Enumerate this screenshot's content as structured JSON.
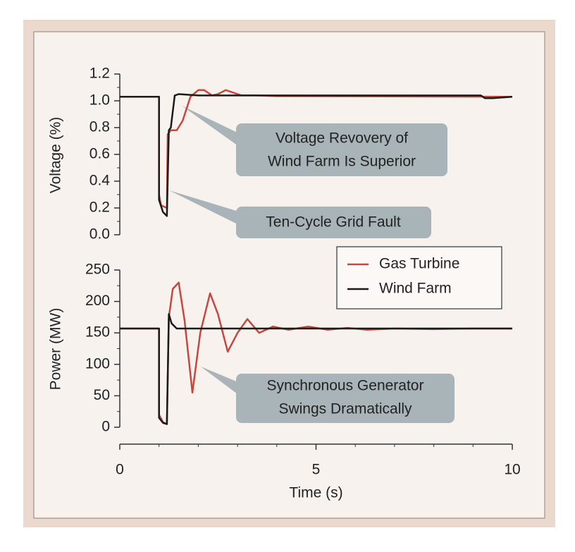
{
  "chart_data": [
    {
      "type": "line",
      "ylabel": "Voltage (%)",
      "xlim": [
        0,
        10
      ],
      "ylim": [
        0,
        1.2
      ],
      "yticks": [
        {
          "value": 0,
          "label": "0.0"
        },
        0.2,
        0.4,
        0.6,
        0.8,
        {
          "value": 1,
          "label": "1.0"
        },
        1.2
      ],
      "series": [
        {
          "color": "#c8473d",
          "x": [
            0,
            1.0,
            1.0,
            1.05,
            1.2,
            1.22,
            1.3,
            1.45,
            1.6,
            1.8,
            2.0,
            2.15,
            2.35,
            2.5,
            2.7,
            2.9,
            3.1,
            3.5,
            4,
            10
          ],
          "values": [
            1.03,
            1.03,
            0.3,
            0.22,
            0.2,
            0.75,
            0.78,
            0.78,
            0.85,
            1.03,
            1.08,
            1.08,
            1.04,
            1.05,
            1.08,
            1.06,
            1.04,
            1.04,
            1.035,
            1.03
          ]
        },
        {
          "color": "#1a1a1a",
          "x": [
            0,
            1.0,
            1.0,
            1.1,
            1.2,
            1.25,
            1.3,
            1.4,
            1.5,
            2,
            9.2,
            9.3,
            9.5,
            10
          ],
          "values": [
            1.03,
            1.03,
            0.26,
            0.17,
            0.14,
            0.78,
            0.8,
            1.04,
            1.05,
            1.04,
            1.04,
            1.02,
            1.02,
            1.03
          ]
        }
      ],
      "annotations": [
        {
          "text": [
            "Voltage Revovery of",
            "Wind Farm Is Superior"
          ]
        },
        {
          "text": [
            "Ten-Cycle Grid Fault"
          ]
        }
      ]
    },
    {
      "type": "line",
      "ylabel": "Power (MW)",
      "xlabel": "Time (s)",
      "xlim": [
        0,
        10
      ],
      "xticks": [
        0,
        5,
        10
      ],
      "ylim": [
        0,
        250
      ],
      "yticks": [
        0,
        50,
        100,
        150,
        200,
        250
      ],
      "legend": "top-right",
      "series": [
        {
          "name": "Gas Turbine",
          "color": "#c8473d",
          "x": [
            0,
            1.0,
            1.0,
            1.1,
            1.2,
            1.25,
            1.35,
            1.5,
            1.65,
            1.85,
            2.05,
            2.3,
            2.5,
            2.75,
            3.0,
            3.25,
            3.55,
            3.9,
            4.3,
            4.8,
            5.3,
            5.8,
            6.3,
            7,
            8,
            9,
            10
          ],
          "values": [
            157,
            157,
            20,
            8,
            5,
            175,
            220,
            230,
            170,
            55,
            150,
            213,
            180,
            120,
            150,
            172,
            150,
            160,
            155,
            160,
            155,
            158,
            155,
            157,
            156,
            157,
            157
          ]
        },
        {
          "name": "Wind Farm",
          "color": "#1a1a1a",
          "x": [
            0,
            1.0,
            1.0,
            1.1,
            1.2,
            1.25,
            1.32,
            1.45,
            2,
            10
          ],
          "values": [
            157,
            157,
            15,
            7,
            5,
            180,
            165,
            157,
            157,
            157
          ]
        }
      ],
      "annotations": [
        {
          "text": [
            "Synchronous Generator",
            "Swings Dramatically"
          ]
        }
      ]
    }
  ]
}
